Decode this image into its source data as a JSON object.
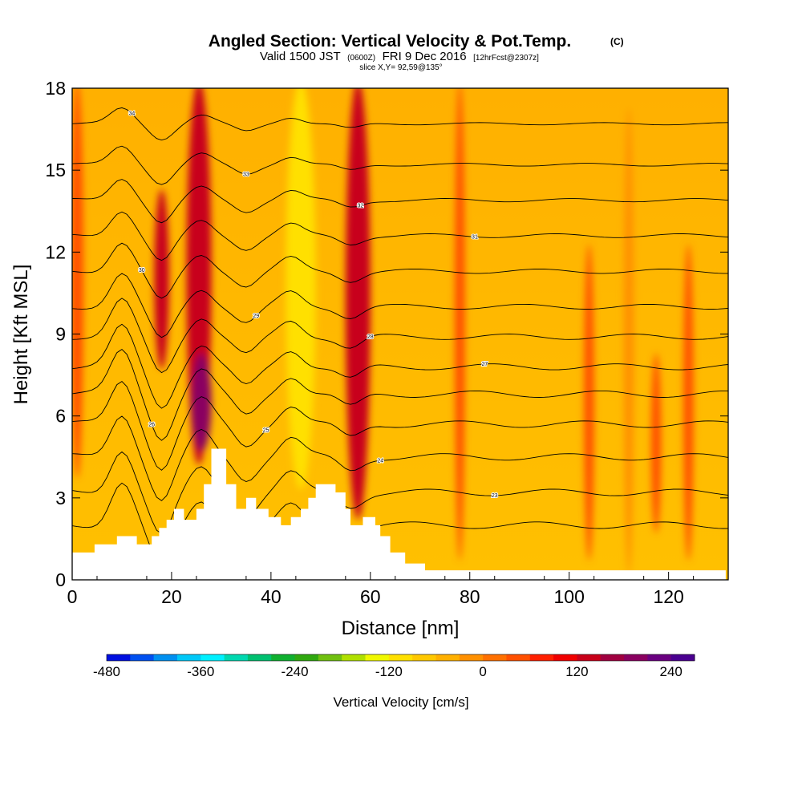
{
  "header": {
    "title_main": "Angled Section: Vertical Velocity & Pot.Temp.",
    "title_tag": "(C)",
    "valid_prefix": "Valid 1500 JST",
    "valid_zulu": "(0600Z)",
    "valid_date": "FRI 9 Dec 2016",
    "valid_fcst": "[12hrFcst@2307z]",
    "slice": "slice X,Y= 92,59@135°"
  },
  "chart_data": {
    "type": "heatmap",
    "title": "Angled Section: Vertical Velocity & Pot.Temp.",
    "xlabel": "Distance [nm]",
    "ylabel": "Height [Kft MSL]",
    "xlim": [
      0,
      132
    ],
    "ylim": [
      0,
      18
    ],
    "xticks": [
      0,
      20,
      40,
      60,
      80,
      100,
      120
    ],
    "yticks": [
      0,
      3,
      6,
      9,
      12,
      15,
      18
    ],
    "colorbar": {
      "label": "Vertical Velocity [cm/s]",
      "boundaries": [
        -480,
        -450,
        -420,
        -390,
        -360,
        -330,
        -300,
        -270,
        -240,
        -210,
        -180,
        -150,
        -120,
        -90,
        -60,
        -30,
        0,
        30,
        60,
        90,
        120,
        150,
        180,
        210,
        240,
        270
      ],
      "colors": [
        "#0010e0",
        "#0050f0",
        "#0090f0",
        "#00c8f8",
        "#00f0ff",
        "#00d8b0",
        "#00c070",
        "#10b030",
        "#30a810",
        "#70c010",
        "#b0e000",
        "#f0f800",
        "#ffe000",
        "#ffc800",
        "#ffb000",
        "#ff9000",
        "#ff7000",
        "#ff5000",
        "#ff2000",
        "#f00000",
        "#c8001a",
        "#a00040",
        "#8a0060",
        "#6a0080",
        "#4a0090"
      ],
      "tick_labels": [
        "-480",
        "-360",
        "-240",
        "-120",
        "0",
        "120",
        "240"
      ]
    },
    "vertical_velocity_bands": [
      {
        "x": 1,
        "w": 2.5,
        "top": 18,
        "bottom": 4,
        "value": 45
      },
      {
        "x": 18,
        "w": 3,
        "top": 14,
        "bottom": 8,
        "value": 120
      },
      {
        "x": 25.5,
        "w": 5,
        "top": 18,
        "bottom": 4.5,
        "value": 140
      },
      {
        "x": 26,
        "w": 4,
        "top": 8,
        "bottom": 5,
        "value": 200
      },
      {
        "x": 46,
        "w": 6,
        "top": 18,
        "bottom": 3.6,
        "value": -110
      },
      {
        "x": 57.5,
        "w": 5,
        "top": 18,
        "bottom": 2.5,
        "value": 130
      },
      {
        "x": 78,
        "w": 2,
        "top": 18,
        "bottom": 1,
        "value": 45
      },
      {
        "x": 104,
        "w": 2,
        "top": 12,
        "bottom": 1,
        "value": 45
      },
      {
        "x": 112,
        "w": 2,
        "top": 17,
        "bottom": 0.5,
        "value": -15
      },
      {
        "x": 117.5,
        "w": 2,
        "top": 8,
        "bottom": 2,
        "value": 50
      },
      {
        "x": 124,
        "w": 2,
        "top": 12,
        "bottom": 1,
        "value": 50
      }
    ],
    "theta_contours": {
      "base_heights": [
        16.7,
        15.2,
        13.9,
        12.6,
        11.3,
        10.0,
        8.9,
        7.8,
        6.8,
        5.7,
        4.5,
        3.2,
        2.0
      ],
      "labels": [
        "34",
        "33",
        "32",
        "31",
        "30",
        "29",
        "28",
        "27",
        "26",
        "25",
        "24",
        "23",
        "22"
      ]
    },
    "terrain_heights": [
      {
        "x": 0,
        "h": 1.0
      },
      {
        "x": 4.5,
        "h": 1.3
      },
      {
        "x": 9,
        "h": 1.6
      },
      {
        "x": 13,
        "h": 1.3
      },
      {
        "x": 16,
        "h": 1.6
      },
      {
        "x": 17.5,
        "h": 1.9
      },
      {
        "x": 19,
        "h": 2.2
      },
      {
        "x": 20.5,
        "h": 2.6
      },
      {
        "x": 22.5,
        "h": 2.2
      },
      {
        "x": 25,
        "h": 2.6
      },
      {
        "x": 26.5,
        "h": 3.5
      },
      {
        "x": 28,
        "h": 4.8
      },
      {
        "x": 31,
        "h": 3.5
      },
      {
        "x": 33,
        "h": 2.6
      },
      {
        "x": 35,
        "h": 3.0
      },
      {
        "x": 37,
        "h": 2.6
      },
      {
        "x": 39.5,
        "h": 2.3
      },
      {
        "x": 42,
        "h": 2.0
      },
      {
        "x": 44,
        "h": 2.3
      },
      {
        "x": 46,
        "h": 2.6
      },
      {
        "x": 47.5,
        "h": 3.0
      },
      {
        "x": 49,
        "h": 3.5
      },
      {
        "x": 53,
        "h": 3.2
      },
      {
        "x": 55,
        "h": 2.6
      },
      {
        "x": 56,
        "h": 2.0
      },
      {
        "x": 58.5,
        "h": 2.3
      },
      {
        "x": 61,
        "h": 2.0
      },
      {
        "x": 62,
        "h": 1.6
      },
      {
        "x": 64,
        "h": 1.0
      },
      {
        "x": 67,
        "h": 0.6
      },
      {
        "x": 71,
        "h": 0.35
      },
      {
        "x": 130,
        "h": 0.35
      },
      {
        "x": 131.5,
        "h": 0.35
      }
    ]
  }
}
